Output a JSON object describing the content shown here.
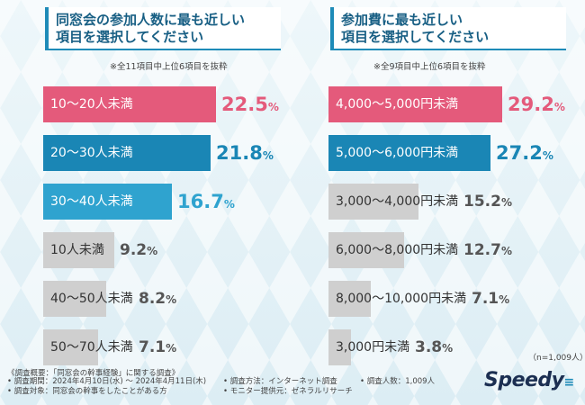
{
  "chart_data": [
    {
      "type": "bar",
      "title": [
        "同窓会の参加人数に最も近しい",
        "項目を選択してください"
      ],
      "note": "※全11項目中上位6項目を抜粋",
      "categories": [
        "10〜20人未満",
        "20〜30人未満",
        "30〜40人未満",
        "10人未満",
        "40〜50人未満",
        "50〜70人未満"
      ],
      "values": [
        22.5,
        21.8,
        16.7,
        9.2,
        8.2,
        7.1
      ],
      "value_texts": [
        "22.5",
        "21.8",
        "16.7",
        "9.2",
        "8.2",
        "7.1"
      ],
      "unit": "%",
      "colors": [
        "#e45a7b",
        "#1a86b5",
        "#2fa3cf",
        "#cfcfcf",
        "#cfcfcf",
        "#cfcfcf"
      ],
      "ylim": [
        0,
        22.5
      ]
    },
    {
      "type": "bar",
      "title": [
        "参加費に最も近しい",
        "項目を選択してください"
      ],
      "note": "※全9項目中上位6項目を抜粋",
      "categories": [
        "4,000〜5,000円未満",
        "5,000〜6,000円未満",
        "3,000〜4,000円未満",
        "6,000〜8,000円未満",
        "8,000〜10,000円未満",
        "3,000円未満"
      ],
      "values": [
        29.2,
        27.2,
        15.2,
        12.7,
        7.1,
        3.8
      ],
      "value_texts": [
        "29.2",
        "27.2",
        "15.2",
        "12.7",
        "7.1",
        "3.8"
      ],
      "unit": "%",
      "colors": [
        "#e45a7b",
        "#1a86b5",
        "#cfcfcf",
        "#cfcfcf",
        "#cfcfcf",
        "#cfcfcf"
      ],
      "ylim": [
        0,
        29.2
      ]
    }
  ],
  "sample_size": "（n=1,009人）",
  "footer": {
    "heading": "《調査概要：「同窓会の幹事経験」に関する調査》",
    "col1": [
      "• 調査期間：2024年4月10日(水) 〜 2024年4月11日(木)",
      "• 調査対象：同窓会の幹事をしたことがある方"
    ],
    "col2": [
      "• 調査方法：インターネット調査",
      "• モニター提供元：ゼネラルリサーチ"
    ],
    "col3": [
      "• 調査人数：1,009人"
    ]
  },
  "logo": {
    "text": "Speedy",
    "mark": "≡"
  }
}
